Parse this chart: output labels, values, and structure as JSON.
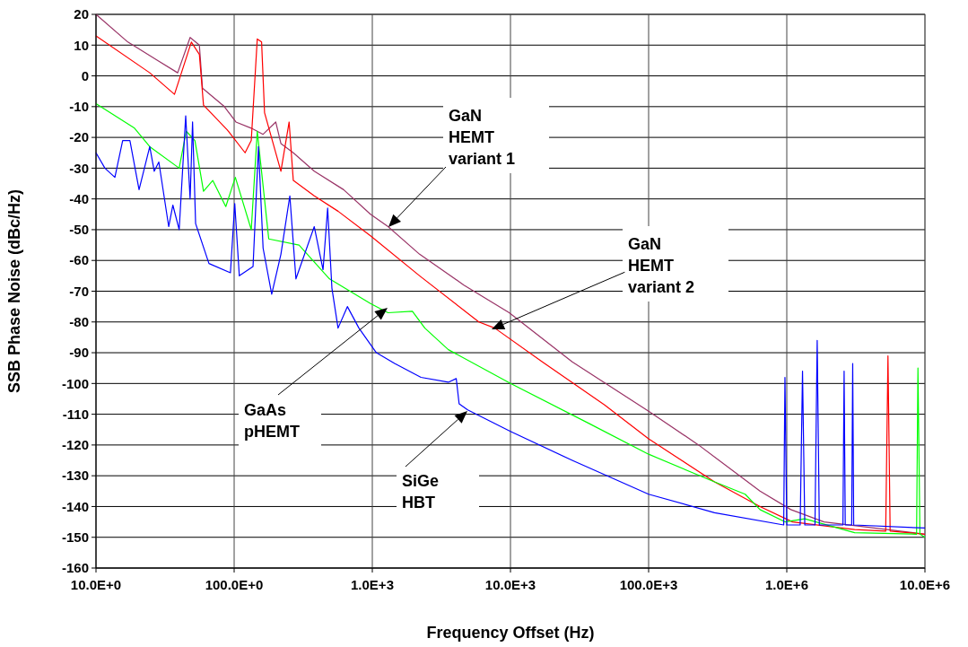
{
  "chart_data": {
    "type": "line",
    "xlabel": "Frequency Offset (Hz)",
    "ylabel": "SSB Phase Noise (dBc/Hz)",
    "log": "x",
    "grid": true,
    "marker": "none",
    "line_style": "solid",
    "xlim": [
      10,
      10000000
    ],
    "ylim": [
      -160,
      20
    ],
    "xticks": [
      {
        "value": 10,
        "label": "10.0E+0"
      },
      {
        "value": 100,
        "label": "100.0E+0"
      },
      {
        "value": 1000,
        "label": "1.0E+3"
      },
      {
        "value": 10000,
        "label": "10.0E+3"
      },
      {
        "value": 100000,
        "label": "100.0E+3"
      },
      {
        "value": 1000000,
        "label": "1.0E+6"
      },
      {
        "value": 10000000,
        "label": "10.0E+6"
      }
    ],
    "yticks": [
      -160,
      -150,
      -140,
      -130,
      -120,
      -110,
      -100,
      -90,
      -80,
      -70,
      -60,
      -50,
      -40,
      -30,
      -20,
      -10,
      0,
      10,
      20
    ],
    "series": [
      {
        "color": "#993366",
        "x": [
          10,
          17,
          28,
          39,
          48,
          56,
          59,
          85,
          103,
          133,
          162,
          200,
          218,
          268,
          380,
          620,
          970,
          1300,
          2200,
          4600,
          9800,
          28000,
          100000,
          230000,
          640000,
          1070000,
          1860000,
          10000000
        ],
        "values": [
          20,
          11,
          5,
          1,
          12.5,
          10,
          -4,
          -10,
          -15,
          -17,
          -19,
          -15,
          -22,
          -25,
          -31,
          -37,
          -45,
          -49,
          -58,
          -68,
          -77,
          -93,
          -109,
          -120,
          -135,
          -141,
          -145,
          -149
        ]
      },
      {
        "color": "#ff0000",
        "x": [
          10,
          24.5,
          37,
          49,
          56,
          60,
          89,
          120,
          133,
          147,
          158,
          166,
          218,
          250,
          268,
          380,
          565,
          970,
          2200,
          5900,
          7700,
          17000,
          48000,
          100000,
          300000,
          640000,
          1100000,
          3100000,
          5200000,
          5400000,
          5600000,
          10000000
        ],
        "values": [
          13,
          1,
          -6,
          11,
          7,
          -9.5,
          -17.5,
          -25,
          -21,
          12,
          11,
          -12,
          -31,
          -15,
          -34,
          -39,
          -44,
          -52,
          -65,
          -80,
          -82,
          -93,
          -107,
          -118,
          -132,
          -140,
          -145,
          -147.5,
          -148,
          -91,
          -148,
          -149
        ]
      },
      {
        "color": "#00ff00",
        "x": [
          10,
          19,
          24.5,
          40,
          45,
          52,
          60,
          70,
          87,
          102,
          133,
          147,
          178,
          295,
          490,
          970,
          1300,
          1950,
          2400,
          3550,
          10000,
          37000,
          100000,
          300000,
          500000,
          640000,
          970000,
          1350000,
          3100000,
          8700000,
          8900000,
          9200000,
          10000000
        ],
        "values": [
          -9,
          -17,
          -23,
          -30,
          -18,
          -21,
          -37.5,
          -34,
          -42.5,
          -33,
          -50,
          -18,
          -53,
          -55,
          -66,
          -74,
          -77,
          -76.5,
          -82,
          -89,
          -100,
          -113,
          -123,
          -132,
          -136,
          -141,
          -145,
          -144,
          -148.5,
          -149,
          -95,
          -149,
          -150
        ]
      },
      {
        "color": "#0000ff",
        "x": [
          10,
          11.6,
          13.7,
          15.6,
          17.6,
          20.5,
          24.5,
          26.4,
          28.5,
          33.6,
          36,
          40,
          44.6,
          48,
          50,
          52.6,
          65.7,
          94,
          101,
          109,
          137,
          150,
          162,
          187,
          218,
          253,
          280,
          380,
          440,
          475,
          510,
          565,
          660,
          800,
          1070,
          1450,
          2250,
          3550,
          4050,
          4250,
          4900,
          10000,
          28000,
          100000,
          300000,
          950000,
          970000,
          1000000,
          1250000,
          1300000,
          1350000,
          1600000,
          1660000,
          1720000,
          2550000,
          2600000,
          2650000,
          2950000,
          3000000,
          3050000,
          10000000
        ],
        "values": [
          -25,
          -30,
          -33,
          -21,
          -21,
          -37,
          -23,
          -31,
          -28,
          -49,
          -42,
          -50,
          -13,
          -40,
          -15,
          -48,
          -61,
          -64,
          -41.5,
          -65,
          -62,
          -23,
          -56,
          -71,
          -58,
          -39,
          -66,
          -49,
          -63,
          -43,
          -69,
          -82,
          -75,
          -82,
          -90,
          -93.5,
          -98,
          -99.6,
          -98.4,
          -106.6,
          -108.6,
          -115.6,
          -125,
          -136,
          -142,
          -146,
          -98,
          -146,
          -146,
          -96,
          -146,
          -146,
          -86,
          -146,
          -146,
          -96,
          -146,
          -146,
          -93.5,
          -146,
          -147
        ]
      }
    ],
    "annotations": [
      "GaN\nHEMT\nvariant 1",
      "GaN\nHEMT\nvariant 2",
      "GaAs\npHEMT",
      "SiGe\nHBT"
    ]
  }
}
